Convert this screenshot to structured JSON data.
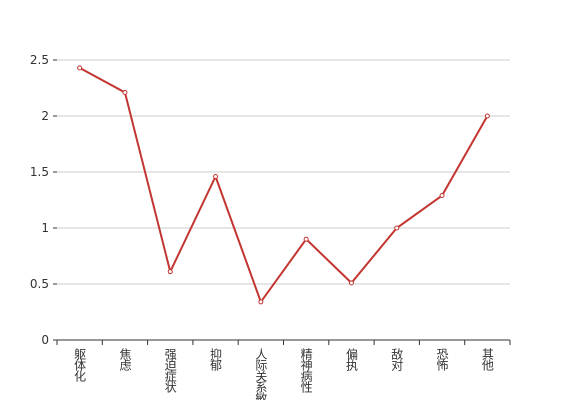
{
  "chart_data": {
    "type": "line",
    "categories": [
      "躯体化",
      "焦虑",
      "强迫症状",
      "抑郁",
      "人际关系敏感",
      "精神病性",
      "偏执",
      "敌对",
      "恐怖",
      "其他"
    ],
    "values": [
      2.43,
      2.21,
      0.61,
      1.46,
      0.34,
      0.9,
      0.51,
      1.0,
      1.29,
      2.0
    ],
    "color": "#c23531",
    "ylim": [
      0,
      2.5
    ],
    "yticks": [
      0,
      0.5,
      1,
      1.5,
      2,
      2.5
    ],
    "grid": true
  }
}
